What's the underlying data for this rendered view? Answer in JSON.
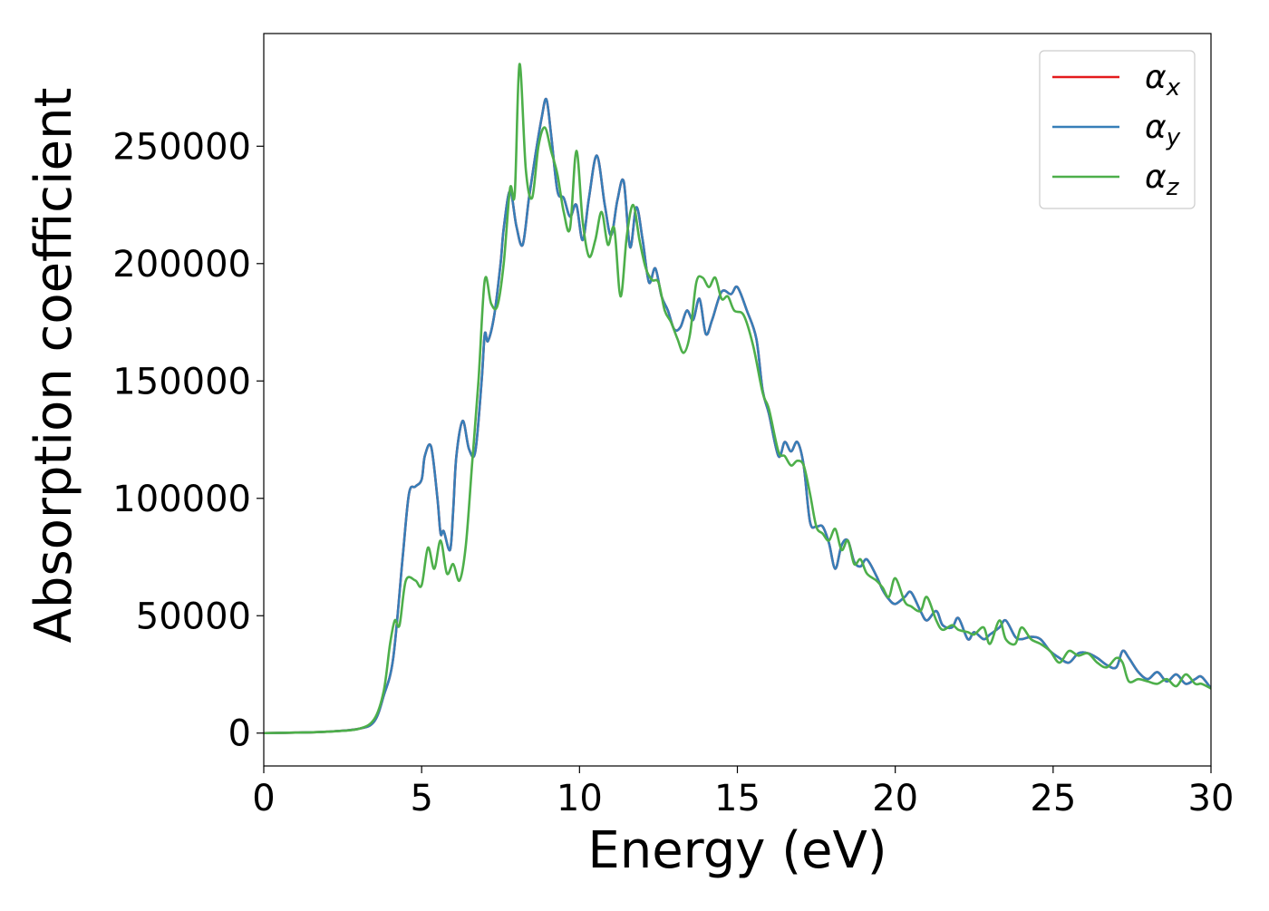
{
  "chart_data": {
    "type": "line",
    "title": "",
    "xlabel": "Energy (eV)",
    "ylabel": "Absorption coefficient",
    "xlim": [
      0,
      30
    ],
    "ylim": [
      -14000,
      298000
    ],
    "xticks": [
      0,
      5,
      10,
      15,
      20,
      25,
      30
    ],
    "xtick_labels": [
      "0",
      "5",
      "10",
      "15",
      "20",
      "25",
      "30"
    ],
    "yticks": [
      0,
      50000,
      100000,
      150000,
      200000,
      250000
    ],
    "ytick_labels": [
      "0",
      "50000",
      "100000",
      "150000",
      "200000",
      "250000"
    ],
    "grid": false,
    "legend_position": "top-right",
    "legend": [
      {
        "symbol": "α",
        "subscript": "x",
        "color": "#e41a1c"
      },
      {
        "symbol": "α",
        "subscript": "y",
        "color": "#377eb8"
      },
      {
        "symbol": "α",
        "subscript": "z",
        "color": "#4daf4a"
      }
    ],
    "series": [
      {
        "key": "alpha_x",
        "color": "#e41a1c",
        "x": [
          0,
          1,
          2,
          3,
          3.5,
          3.8,
          4.1,
          4.4,
          4.6,
          4.8,
          5.0,
          5.1,
          5.3,
          5.5,
          5.6,
          5.7,
          5.9,
          6.0,
          6.1,
          6.3,
          6.5,
          6.7,
          6.9,
          7.0,
          7.1,
          7.3,
          7.5,
          7.6,
          7.8,
          8.0,
          8.2,
          8.4,
          8.6,
          8.8,
          8.95,
          9.1,
          9.3,
          9.5,
          9.7,
          9.9,
          10.1,
          10.3,
          10.55,
          10.8,
          11.0,
          11.2,
          11.4,
          11.6,
          11.8,
          12.0,
          12.2,
          12.4,
          12.6,
          12.8,
          13.0,
          13.2,
          13.4,
          13.6,
          13.8,
          14.0,
          14.2,
          14.5,
          14.8,
          15.0,
          15.3,
          15.6,
          15.8,
          16.0,
          16.3,
          16.5,
          16.7,
          16.9,
          17.1,
          17.3,
          17.5,
          17.7,
          17.9,
          18.1,
          18.3,
          18.5,
          18.7,
          18.9,
          19.1,
          19.4,
          19.6,
          19.8,
          20.0,
          20.3,
          20.5,
          20.8,
          21.0,
          21.3,
          21.5,
          21.8,
          22.0,
          22.3,
          22.5,
          22.8,
          23.0,
          23.3,
          23.5,
          23.8,
          24.0,
          24.3,
          24.6,
          24.9,
          25.2,
          25.5,
          25.8,
          26.1,
          26.4,
          26.7,
          27.0,
          27.2,
          27.4,
          27.7,
          28.0,
          28.3,
          28.6,
          28.9,
          29.2,
          29.5,
          29.7,
          30.0
        ],
        "y": [
          0,
          200,
          600,
          1800,
          5000,
          16000,
          32000,
          75000,
          102000,
          105000,
          108000,
          118000,
          122000,
          100000,
          85000,
          86000,
          78000,
          95000,
          118000,
          133000,
          121000,
          120000,
          150000,
          170000,
          167000,
          178000,
          200000,
          215000,
          231000,
          216000,
          208000,
          228000,
          246000,
          262000,
          270000,
          255000,
          231000,
          228000,
          220000,
          225000,
          210000,
          228000,
          246000,
          225000,
          212000,
          227000,
          235000,
          207000,
          224000,
          210000,
          192000,
          198000,
          186000,
          180000,
          172000,
          173000,
          180000,
          176000,
          185000,
          170000,
          176000,
          188000,
          187000,
          190000,
          180000,
          168000,
          146000,
          136000,
          118000,
          124000,
          120000,
          124000,
          114000,
          90000,
          88000,
          88000,
          81000,
          70000,
          80000,
          82000,
          73000,
          71000,
          74000,
          67000,
          61000,
          57000,
          55000,
          58000,
          60000,
          52000,
          48000,
          52000,
          46000,
          45000,
          49000,
          40000,
          43000,
          40000,
          42000,
          45000,
          48000,
          41000,
          40000,
          41000,
          40000,
          35000,
          32000,
          30000,
          34000,
          34000,
          32000,
          29000,
          28000,
          35000,
          32000,
          26000,
          23000,
          26000,
          22000,
          25000,
          21000,
          23000,
          24000,
          19000
        ]
      },
      {
        "key": "alpha_y",
        "color": "#377eb8",
        "x": [
          0,
          1,
          2,
          3,
          3.5,
          3.8,
          4.1,
          4.4,
          4.6,
          4.8,
          5.0,
          5.1,
          5.3,
          5.5,
          5.6,
          5.7,
          5.9,
          6.0,
          6.1,
          6.3,
          6.5,
          6.7,
          6.9,
          7.0,
          7.1,
          7.3,
          7.5,
          7.6,
          7.8,
          8.0,
          8.2,
          8.4,
          8.6,
          8.8,
          8.95,
          9.1,
          9.3,
          9.5,
          9.7,
          9.9,
          10.1,
          10.3,
          10.55,
          10.8,
          11.0,
          11.2,
          11.4,
          11.6,
          11.8,
          12.0,
          12.2,
          12.4,
          12.6,
          12.8,
          13.0,
          13.2,
          13.4,
          13.6,
          13.8,
          14.0,
          14.2,
          14.5,
          14.8,
          15.0,
          15.3,
          15.6,
          15.8,
          16.0,
          16.3,
          16.5,
          16.7,
          16.9,
          17.1,
          17.3,
          17.5,
          17.7,
          17.9,
          18.1,
          18.3,
          18.5,
          18.7,
          18.9,
          19.1,
          19.4,
          19.6,
          19.8,
          20.0,
          20.3,
          20.5,
          20.8,
          21.0,
          21.3,
          21.5,
          21.8,
          22.0,
          22.3,
          22.5,
          22.8,
          23.0,
          23.3,
          23.5,
          23.8,
          24.0,
          24.3,
          24.6,
          24.9,
          25.2,
          25.5,
          25.8,
          26.1,
          26.4,
          26.7,
          27.0,
          27.2,
          27.4,
          27.7,
          28.0,
          28.3,
          28.6,
          28.9,
          29.2,
          29.5,
          29.7,
          30.0
        ],
        "y": [
          0,
          200,
          600,
          1800,
          5000,
          16000,
          32000,
          75000,
          102000,
          105000,
          108000,
          118000,
          122000,
          100000,
          85000,
          86000,
          78000,
          95000,
          118000,
          133000,
          121000,
          120000,
          150000,
          170000,
          167000,
          178000,
          200000,
          215000,
          231000,
          216000,
          208000,
          228000,
          246000,
          262000,
          270000,
          255000,
          231000,
          228000,
          220000,
          225000,
          210000,
          228000,
          246000,
          225000,
          212000,
          227000,
          235000,
          207000,
          224000,
          210000,
          192000,
          198000,
          186000,
          180000,
          172000,
          173000,
          180000,
          176000,
          185000,
          170000,
          176000,
          188000,
          187000,
          190000,
          180000,
          168000,
          146000,
          136000,
          118000,
          124000,
          120000,
          124000,
          114000,
          90000,
          88000,
          88000,
          81000,
          70000,
          80000,
          82000,
          73000,
          71000,
          74000,
          67000,
          61000,
          57000,
          55000,
          58000,
          60000,
          52000,
          48000,
          52000,
          46000,
          45000,
          49000,
          40000,
          43000,
          40000,
          42000,
          45000,
          48000,
          41000,
          40000,
          41000,
          40000,
          35000,
          32000,
          30000,
          34000,
          34000,
          32000,
          29000,
          28000,
          35000,
          32000,
          26000,
          23000,
          26000,
          22000,
          25000,
          21000,
          23000,
          24000,
          19000
        ]
      },
      {
        "key": "alpha_z",
        "color": "#4daf4a",
        "x": [
          0,
          1,
          2,
          3,
          3.5,
          3.8,
          4.0,
          4.15,
          4.3,
          4.5,
          4.8,
          5.0,
          5.2,
          5.4,
          5.6,
          5.8,
          6.0,
          6.2,
          6.4,
          6.6,
          6.8,
          7.0,
          7.2,
          7.4,
          7.6,
          7.8,
          7.95,
          8.1,
          8.3,
          8.5,
          8.7,
          8.9,
          9.1,
          9.3,
          9.5,
          9.7,
          9.9,
          10.1,
          10.3,
          10.5,
          10.7,
          10.9,
          11.1,
          11.3,
          11.5,
          11.7,
          11.9,
          12.1,
          12.3,
          12.5,
          12.7,
          12.9,
          13.1,
          13.3,
          13.5,
          13.7,
          13.9,
          14.1,
          14.3,
          14.5,
          14.7,
          14.9,
          15.2,
          15.5,
          15.8,
          16.0,
          16.3,
          16.5,
          16.7,
          16.9,
          17.1,
          17.3,
          17.5,
          17.7,
          17.9,
          18.1,
          18.3,
          18.5,
          18.7,
          18.9,
          19.1,
          19.4,
          19.6,
          19.8,
          20.0,
          20.3,
          20.5,
          20.8,
          21.0,
          21.3,
          21.5,
          21.8,
          22.0,
          22.3,
          22.5,
          22.8,
          23.0,
          23.3,
          23.5,
          23.8,
          24.0,
          24.3,
          24.6,
          24.9,
          25.2,
          25.5,
          25.8,
          26.1,
          26.4,
          26.7,
          27.0,
          27.2,
          27.4,
          27.7,
          28.0,
          28.3,
          28.6,
          28.9,
          29.2,
          29.5,
          29.7,
          30.0
        ],
        "y": [
          0,
          200,
          600,
          1800,
          6000,
          18000,
          38000,
          48000,
          46000,
          65000,
          65000,
          63000,
          79000,
          70000,
          82000,
          68000,
          72000,
          65000,
          80000,
          115000,
          150000,
          193000,
          183000,
          182000,
          200000,
          232000,
          230000,
          285000,
          240000,
          228000,
          250000,
          258000,
          248000,
          238000,
          222000,
          215000,
          248000,
          218000,
          203000,
          210000,
          222000,
          208000,
          215000,
          186000,
          212000,
          225000,
          210000,
          198000,
          193000,
          192000,
          180000,
          175000,
          168000,
          162000,
          170000,
          192000,
          194000,
          190000,
          194000,
          185000,
          186000,
          180000,
          178000,
          165000,
          145000,
          138000,
          120000,
          118000,
          114000,
          116000,
          114000,
          102000,
          88000,
          85000,
          82000,
          87000,
          78000,
          82000,
          72000,
          74000,
          68000,
          65000,
          62000,
          58000,
          66000,
          56000,
          54000,
          52000,
          58000,
          48000,
          44000,
          46000,
          44000,
          43000,
          42000,
          45000,
          38000,
          48000,
          40000,
          38000,
          45000,
          40000,
          38000,
          35000,
          30000,
          35000,
          33000,
          34000,
          30000,
          28000,
          32000,
          30000,
          22000,
          23000,
          22000,
          21000,
          23000,
          20000,
          25000,
          21000,
          21000,
          19000
        ]
      }
    ]
  }
}
